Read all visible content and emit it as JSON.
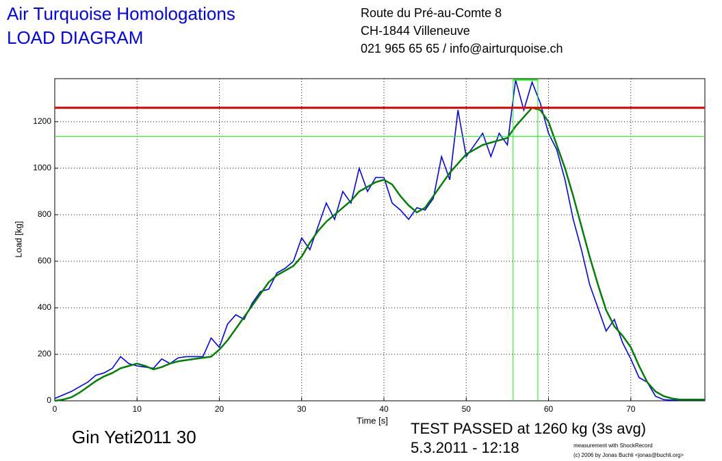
{
  "chart_data": {
    "type": "line",
    "title": "Air Turquoise Homologations",
    "subtitle": "LOAD DIAGRAM",
    "address": [
      "Route du Pré-au-Comte 8",
      "CH-1844 Villeneuve",
      "021 965 65 65 / info@airturquoise.ch"
    ],
    "glider": "Gin Yeti2011 30",
    "result": "TEST PASSED at 1260 kg (3s avg)",
    "date": "5.3.2011 - 12:18",
    "credits": [
      "measurement with ShockRecord",
      "(c) 2006 by Jonas Buchli <jonas@buchli.org>"
    ],
    "x_label": "Time [s]",
    "y_label": "Load [kg]",
    "x": [
      0,
      1,
      2,
      3,
      4,
      5,
      6,
      7,
      8,
      9,
      10,
      11,
      12,
      13,
      14,
      15,
      16,
      17,
      18,
      19,
      20,
      21,
      22,
      23,
      24,
      25,
      26,
      27,
      28,
      29,
      30,
      31,
      32,
      33,
      34,
      35,
      36,
      37,
      38,
      39,
      40,
      41,
      42,
      43,
      44,
      45,
      46,
      47,
      48,
      49,
      50,
      51,
      52,
      53,
      54,
      55,
      56,
      57,
      58,
      59,
      60,
      61,
      62,
      63,
      64,
      65,
      66,
      67,
      68,
      69,
      70,
      71,
      72,
      73,
      74,
      75,
      76,
      77,
      78,
      79
    ],
    "series": [
      {
        "color": "#0000ff",
        "values": [
          10,
          25,
          40,
          60,
          80,
          110,
          120,
          140,
          190,
          160,
          150,
          145,
          140,
          180,
          160,
          185,
          190,
          190,
          190,
          270,
          230,
          330,
          370,
          350,
          420,
          470,
          480,
          550,
          570,
          600,
          700,
          650,
          750,
          850,
          780,
          900,
          850,
          1000,
          900,
          960,
          960,
          850,
          820,
          780,
          830,
          820,
          870,
          1050,
          950,
          1250,
          1050,
          1100,
          1150,
          1050,
          1150,
          1100,
          1380,
          1250,
          1370,
          1280,
          1150,
          1080,
          950,
          780,
          650,
          500,
          400,
          300,
          350,
          250,
          180,
          100,
          80,
          20,
          5,
          3,
          3,
          3,
          3,
          3
        ]
      },
      {
        "color": "#008000",
        "values": [
          0,
          5,
          15,
          35,
          60,
          85,
          105,
          120,
          140,
          150,
          160,
          150,
          135,
          145,
          160,
          170,
          175,
          180,
          185,
          190,
          220,
          260,
          310,
          360,
          410,
          460,
          510,
          540,
          560,
          580,
          620,
          680,
          730,
          770,
          800,
          830,
          860,
          900,
          920,
          940,
          950,
          930,
          880,
          840,
          810,
          830,
          880,
          930,
          980,
          1020,
          1060,
          1080,
          1100,
          1110,
          1120,
          1130,
          1180,
          1220,
          1260,
          1250,
          1200,
          1100,
          1000,
          880,
          750,
          620,
          500,
          390,
          320,
          280,
          230,
          150,
          80,
          40,
          20,
          10,
          5,
          5,
          5,
          5
        ]
      }
    ],
    "hlines": [
      {
        "value": 1260,
        "color": "#ff0000"
      },
      {
        "value": 1136,
        "color": "#00ff00"
      }
    ],
    "vlines": [
      {
        "value": 55.7,
        "color": "#00ff00"
      },
      {
        "value": 58.7,
        "color": "#00ff00"
      }
    ],
    "window_top": 1380,
    "xlim": [
      0,
      79
    ],
    "ylim": [
      0,
      1385
    ],
    "xticks": [
      0,
      10,
      20,
      30,
      40,
      50,
      60,
      70
    ],
    "yticks": [
      0,
      200,
      400,
      600,
      800,
      1000,
      1200
    ],
    "grid": true
  }
}
